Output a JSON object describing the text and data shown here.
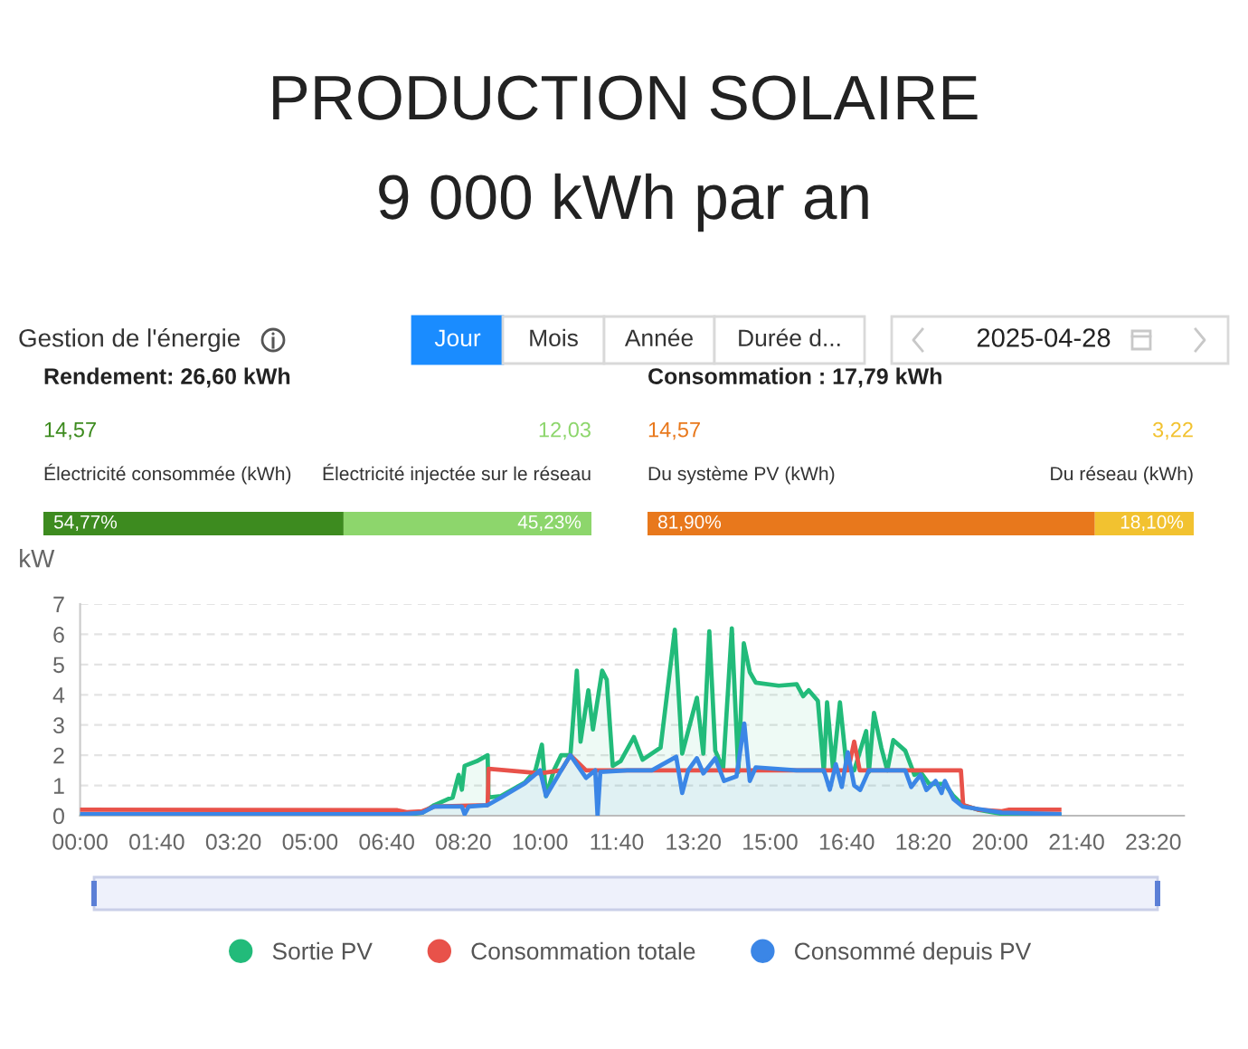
{
  "chart_data": [
    {
      "type": "other",
      "title": "PRODUCTION SOLAIRE",
      "subtitle": "9 000 kWh par an",
      "annotations": [
        "Gestion de l'énergie",
        "Jour",
        "Mois",
        "Année",
        "Durée d...",
        "2025-04-28"
      ]
    },
    {
      "type": "bar",
      "orientation": "horizontal",
      "stacked": true,
      "title": "Rendement: 26,60 kWh",
      "categories": [
        null
      ],
      "xlim": [
        0,
        100
      ],
      "tick_labels": false,
      "series": [
        {
          "name": "Électricité consommée (kWh)",
          "color": "#3d8b1f",
          "values": [
            54.77
          ],
          "value_labels": [
            "54,77%"
          ]
        },
        {
          "name": "Électricité injectée sur le réseau",
          "color": "#8dd66c",
          "values": [
            45.23
          ],
          "value_labels": [
            "45,23%"
          ]
        }
      ],
      "annotations": [
        "14,57",
        "12,03"
      ]
    },
    {
      "type": "bar",
      "orientation": "horizontal",
      "stacked": true,
      "title": "Consommation : 17,79 kWh",
      "categories": [
        null
      ],
      "xlim": [
        0,
        100
      ],
      "tick_labels": false,
      "series": [
        {
          "name": "Du système PV (kWh)",
          "color": "#e8781c",
          "values": [
            81.9
          ],
          "value_labels": [
            "81,90%"
          ]
        },
        {
          "name": "Du réseau (kWh)",
          "color": "#f2c230",
          "values": [
            18.1
          ],
          "value_labels": [
            "18,10%"
          ]
        }
      ],
      "annotations": [
        "14,57",
        "3,22"
      ]
    },
    {
      "type": "line",
      "ylabel": "kW",
      "xlim": [
        0,
        24
      ],
      "ylim": [
        0,
        7
      ],
      "yticks": [
        0,
        1,
        2,
        3,
        4,
        5,
        6,
        7
      ],
      "xticks": [
        {
          "value": 0,
          "label": "00:00"
        },
        {
          "value": 1.6667,
          "label": "01:40"
        },
        {
          "value": 3.3333,
          "label": "03:20"
        },
        {
          "value": 5,
          "label": "05:00"
        },
        {
          "value": 6.6667,
          "label": "06:40"
        },
        {
          "value": 8.3333,
          "label": "08:20"
        },
        {
          "value": 10,
          "label": "10:00"
        },
        {
          "value": 11.6667,
          "label": "11:40"
        },
        {
          "value": 13.3333,
          "label": "13:20"
        },
        {
          "value": 15,
          "label": "15:00"
        },
        {
          "value": 16.6667,
          "label": "16:40"
        },
        {
          "value": 18.3333,
          "label": "18:20"
        },
        {
          "value": 20,
          "label": "20:00"
        },
        {
          "value": 21.6667,
          "label": "21:40"
        },
        {
          "value": 23.3333,
          "label": "23:20"
        }
      ],
      "grid": "y",
      "legend": "bottom",
      "series": [
        {
          "name": "Sortie PV",
          "type": "area",
          "color": "#22bb7a",
          "x": [
            0,
            6.9,
            7.2,
            7.44,
            7.7,
            8.0,
            8.1,
            8.23,
            8.3,
            8.36,
            8.62,
            8.86,
            8.88,
            9.15,
            9.67,
            9.9,
            10.04,
            10.13,
            10.3,
            10.46,
            10.66,
            10.8,
            10.88,
            11.05,
            11.15,
            11.35,
            11.45,
            11.58,
            11.75,
            12.04,
            12.23,
            12.62,
            12.93,
            13.09,
            13.41,
            13.55,
            13.68,
            13.81,
            13.98,
            14.17,
            14.31,
            14.43,
            14.56,
            14.69,
            15.19,
            15.58,
            15.72,
            15.84,
            16.04,
            16.17,
            16.24,
            16.37,
            16.52,
            16.67,
            16.83,
            17.09,
            17.15,
            17.26,
            17.42,
            17.55,
            17.68,
            17.94,
            18.14,
            18.27,
            18.46,
            18.8,
            18.99,
            19.19,
            19.52,
            20.04,
            21.29
          ],
          "values": [
            0,
            0,
            0.05,
            0.1,
            0.35,
            0.55,
            0.6,
            1.35,
            0.86,
            1.65,
            1.8,
            2.0,
            0.6,
            0.65,
            1.1,
            1.5,
            2.35,
            0.65,
            1.5,
            2.0,
            2.0,
            4.8,
            2.45,
            4.15,
            2.85,
            4.8,
            4.5,
            1.65,
            1.8,
            2.6,
            1.85,
            2.25,
            6.15,
            2.05,
            3.9,
            2.05,
            6.1,
            2.15,
            1.55,
            6.2,
            1.45,
            5.7,
            4.75,
            4.4,
            4.3,
            4.35,
            3.95,
            4.15,
            3.8,
            1.45,
            3.75,
            1.55,
            3.75,
            1.55,
            1.5,
            2.8,
            1.45,
            3.4,
            2.25,
            1.5,
            2.5,
            2.15,
            1.35,
            1.45,
            1.05,
            1.05,
            0.65,
            0.35,
            0.2,
            0.06,
            0.03
          ]
        },
        {
          "name": "Consommation totale",
          "type": "line",
          "color": "#e8524a",
          "x": [
            0,
            6.9,
            7.1,
            7.44,
            7.7,
            8.86,
            8.88,
            9.67,
            10.0,
            10.46,
            10.66,
            11.0,
            16.7,
            16.83,
            16.95,
            19.15,
            19.2,
            19.52,
            20.04,
            20.2,
            21.29
          ],
          "values": [
            0.2,
            0.18,
            0.12,
            0.15,
            0.3,
            0.35,
            1.55,
            1.45,
            1.4,
            1.5,
            2.0,
            1.5,
            1.5,
            2.45,
            1.5,
            1.5,
            0.35,
            0.2,
            0.15,
            0.2,
            0.2
          ]
        },
        {
          "name": "Consommé depuis PV",
          "type": "area",
          "color": "#3b86e6",
          "x": [
            0,
            7.0,
            7.44,
            7.7,
            8.0,
            8.3,
            8.36,
            8.45,
            8.86,
            9.15,
            9.67,
            10.0,
            10.13,
            10.46,
            10.66,
            11.0,
            11.2,
            11.25,
            11.31,
            11.9,
            12.43,
            12.96,
            13.09,
            13.22,
            13.41,
            13.55,
            13.81,
            14.0,
            14.27,
            14.44,
            14.56,
            14.69,
            15.58,
            16.17,
            16.3,
            16.43,
            16.56,
            16.69,
            16.83,
            16.96,
            17.15,
            17.94,
            18.07,
            18.27,
            18.4,
            18.6,
            18.73,
            18.8,
            18.99,
            19.19,
            20.04,
            21.29
          ],
          "values": [
            0.05,
            0.05,
            0.1,
            0.3,
            0.3,
            0.3,
            0.05,
            0.3,
            0.35,
            0.6,
            1.07,
            1.5,
            0.65,
            1.5,
            2.0,
            1.25,
            1.5,
            0.0,
            1.45,
            1.5,
            1.5,
            1.95,
            0.75,
            1.5,
            1.9,
            1.4,
            1.9,
            1.15,
            1.3,
            3.05,
            1.15,
            1.6,
            1.5,
            1.5,
            0.86,
            1.7,
            0.95,
            2.1,
            1.0,
            0.85,
            1.5,
            1.5,
            0.95,
            1.35,
            0.85,
            1.15,
            0.75,
            1.15,
            0.55,
            0.3,
            0.1,
            0.05
          ]
        }
      ]
    }
  ]
}
